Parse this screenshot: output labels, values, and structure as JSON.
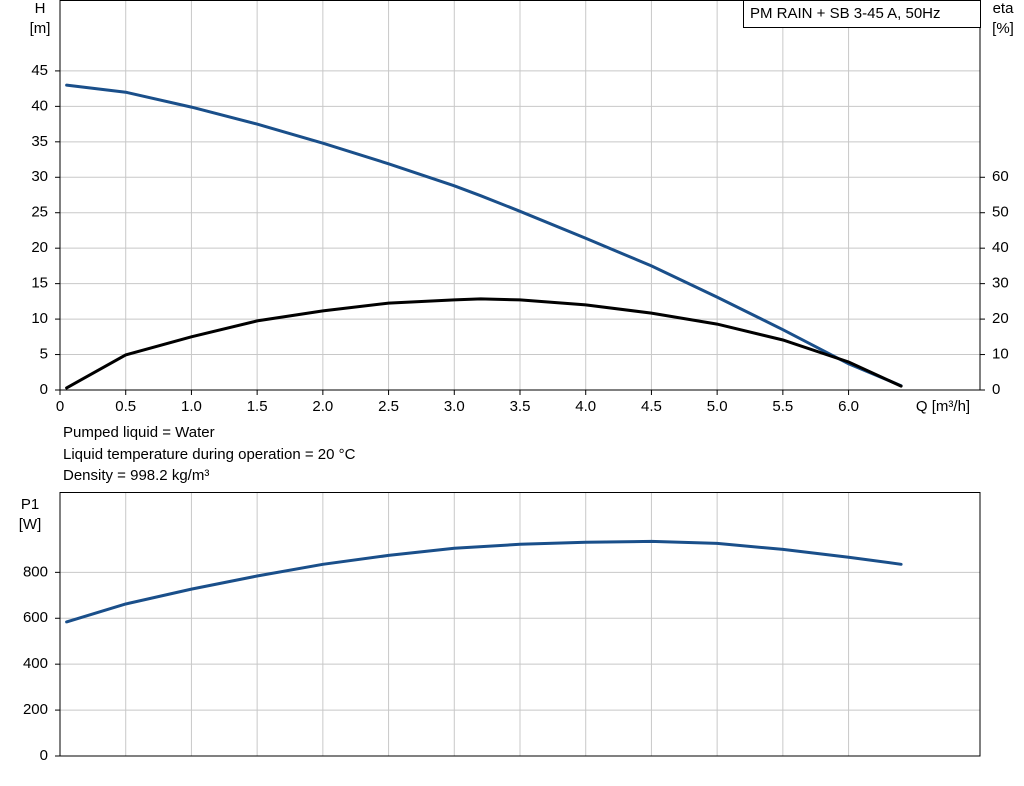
{
  "chart_data": [
    {
      "type": "line",
      "title": "PM RAIN + SB 3-45 A, 50Hz",
      "y_label": "H",
      "y_unit": "[m]",
      "y2_label": "eta",
      "y2_unit": "[%]",
      "x_label": "Q [m³/h]",
      "annotations": [
        "Pumped liquid = Water",
        "Liquid temperature during operation = 20 °C",
        "Density = 998.2 kg/m³"
      ],
      "xlim": [
        0,
        7
      ],
      "ylim": [
        0,
        55
      ],
      "y2lim": [
        0,
        110
      ],
      "xticks": [
        0,
        0.5,
        {
          "value": 1,
          "label": "1.0"
        },
        1.5,
        {
          "value": 2,
          "label": "2.0"
        },
        2.5,
        {
          "value": 3,
          "label": "3.0"
        },
        3.5,
        {
          "value": 4,
          "label": "4.0"
        },
        4.5,
        {
          "value": 5,
          "label": "5.0"
        },
        5.5,
        {
          "value": 6,
          "label": "6.0"
        }
      ],
      "yticks": [
        0,
        5,
        10,
        15,
        20,
        25,
        30,
        35,
        40,
        45
      ],
      "y2ticks": [
        0,
        10,
        20,
        30,
        40,
        50,
        60
      ],
      "x": [
        0.05,
        0.5,
        1,
        1.5,
        2,
        2.5,
        3,
        3.2,
        3.5,
        4,
        4.5,
        5,
        5.5,
        6,
        6.4
      ],
      "series": [
        {
          "color": "#1a4f8a",
          "values": [
            43,
            42.0,
            39.9,
            37.5,
            34.8,
            31.9,
            28.8,
            27.4,
            25.2,
            21.4,
            17.5,
            13.1,
            8.5,
            3.7,
            0.6
          ]
        },
        {
          "color": "#000000",
          "axis": "y2",
          "values": [
            0.6,
            9.9,
            15,
            19.5,
            22.3,
            24.5,
            25.4,
            25.7,
            25.4,
            24,
            21.7,
            18.6,
            14.1,
            7.9,
            1.1
          ]
        }
      ]
    },
    {
      "type": "line",
      "y_label": "P1",
      "y_unit": "[W]",
      "xlim": [
        0,
        7
      ],
      "ylim": [
        0,
        1150
      ],
      "yticks": [
        0,
        200,
        400,
        600,
        800
      ],
      "x": [
        0.05,
        0.5,
        1,
        1.5,
        2,
        2.5,
        3,
        3.5,
        4,
        4.5,
        5,
        5.5,
        6,
        6.4
      ],
      "series": [
        {
          "color": "#1a4f8a",
          "values": [
            584,
            662,
            727,
            784,
            835,
            874,
            905,
            922,
            931,
            935,
            926,
            900,
            866,
            835
          ]
        }
      ]
    }
  ]
}
